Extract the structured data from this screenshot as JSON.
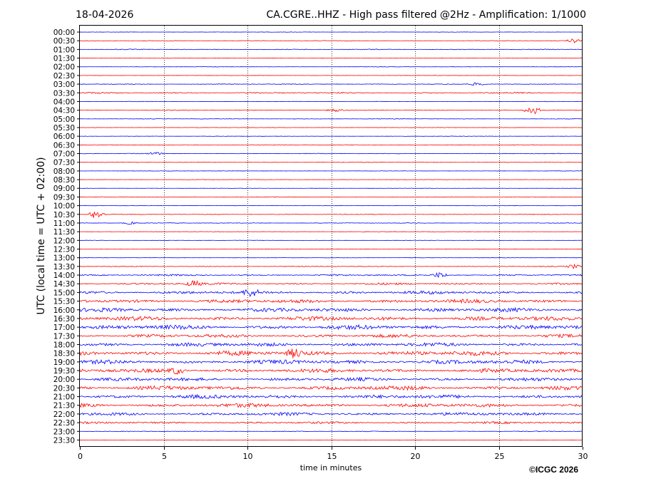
{
  "chart_data": {
    "type": "line",
    "date": "18-04-2026",
    "title": "CA.CGRE..HHZ - High pass filtered @2Hz - Amplification: 1/1000",
    "xlabel": "time in minutes",
    "ylabel": "UTC (local time = UTC + 02:00)",
    "copyright": "©ICGC 2026",
    "xlim": [
      0,
      30
    ],
    "x_ticks": [
      0,
      5,
      10,
      15,
      20,
      25,
      30
    ],
    "grid": "vertical dotted lines at x ticks",
    "colors": [
      "#0000ff",
      "#ff0000"
    ],
    "color_for_rows": "alternating blue/red starting with blue at 00:00",
    "rows": [
      "00:00",
      "00:30",
      "01:00",
      "01:30",
      "02:00",
      "02:30",
      "03:00",
      "03:30",
      "04:00",
      "04:30",
      "05:00",
      "05:30",
      "06:00",
      "06:30",
      "07:00",
      "07:30",
      "08:00",
      "08:30",
      "09:00",
      "09:30",
      "10:00",
      "10:30",
      "11:00",
      "11:30",
      "12:00",
      "12:30",
      "13:00",
      "13:30",
      "14:00",
      "14:30",
      "15:00",
      "15:30",
      "16:00",
      "16:30",
      "17:00",
      "17:30",
      "18:00",
      "18:30",
      "19:00",
      "19:30",
      "20:00",
      "20:30",
      "21:00",
      "21:30",
      "22:00",
      "22:30",
      "23:00",
      "23:30"
    ],
    "noise_level": [
      0.3,
      0.4,
      0.6,
      0.3,
      0.3,
      0.3,
      0.6,
      1.0,
      0.3,
      0.6,
      0.4,
      0.3,
      0.3,
      0.4,
      0.5,
      0.4,
      0.3,
      0.3,
      0.3,
      0.4,
      0.3,
      0.5,
      0.5,
      0.3,
      0.3,
      0.3,
      0.3,
      0.6,
      1.2,
      1.6,
      2.4,
      2.8,
      3.0,
      3.2,
      3.4,
      2.6,
      2.9,
      3.6,
      3.2,
      3.0,
      2.6,
      3.2,
      3.0,
      3.0,
      2.4,
      1.6,
      0.6,
      0.3
    ],
    "events": [
      {
        "row": "00:30",
        "minute": 29.5,
        "amplitude": 3
      },
      {
        "row": "03:00",
        "minute": 23.7,
        "amplitude": 2
      },
      {
        "row": "04:30",
        "minute": 15.2,
        "amplitude": 2
      },
      {
        "row": "04:30",
        "minute": 27.0,
        "amplitude": 7
      },
      {
        "row": "07:00",
        "minute": 4.5,
        "amplitude": 2
      },
      {
        "row": "10:30",
        "minute": 1.0,
        "amplitude": 7
      },
      {
        "row": "11:00",
        "minute": 3.0,
        "amplitude": 2
      },
      {
        "row": "13:30",
        "minute": 29.5,
        "amplitude": 3
      },
      {
        "row": "14:00",
        "minute": 21.5,
        "amplitude": 4
      },
      {
        "row": "14:30",
        "minute": 6.8,
        "amplitude": 4
      },
      {
        "row": "15:00",
        "minute": 10.2,
        "amplitude": 5
      },
      {
        "row": "18:30",
        "minute": 12.8,
        "amplitude": 6
      },
      {
        "row": "19:30",
        "minute": 5.8,
        "amplitude": 5
      }
    ]
  }
}
